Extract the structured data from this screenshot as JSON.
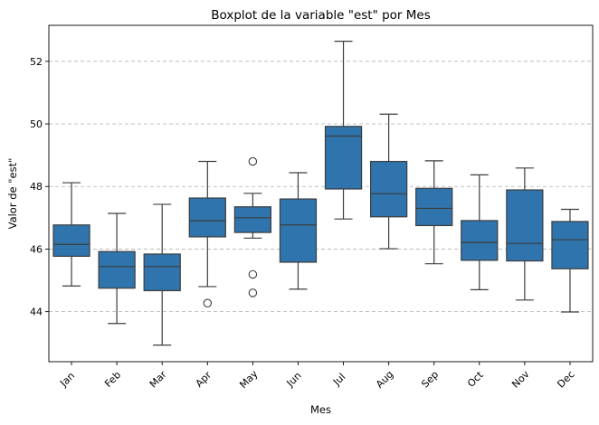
{
  "chart_data": {
    "type": "boxplot",
    "title": "Boxplot de la variable \"est\" por Mes",
    "xlabel": "Mes",
    "ylabel": "Valor de \"est\"",
    "ylim": [
      42.4,
      53.15
    ],
    "yticks": [
      44,
      46,
      48,
      50,
      52
    ],
    "grid": "horizontal-dashed",
    "box_color": "#2f74ac",
    "line_color": "#3d3d3d",
    "grid_color": "#b0b0b0",
    "categories": [
      "Jan",
      "Feb",
      "Mar",
      "Apr",
      "May",
      "Jun",
      "Jul",
      "Aug",
      "Sep",
      "Oct",
      "Nov",
      "Dec"
    ],
    "boxes": [
      {
        "category": "Jan",
        "whislo": 44.82,
        "q1": 45.77,
        "med": 46.15,
        "q3": 46.77,
        "whishi": 48.12,
        "fliers": []
      },
      {
        "category": "Feb",
        "whislo": 43.62,
        "q1": 44.75,
        "med": 45.44,
        "q3": 45.92,
        "whishi": 47.14,
        "fliers": []
      },
      {
        "category": "Mar",
        "whislo": 42.93,
        "q1": 44.67,
        "med": 45.44,
        "q3": 45.84,
        "whishi": 47.43,
        "fliers": []
      },
      {
        "category": "Apr",
        "whislo": 44.8,
        "q1": 46.39,
        "med": 46.9,
        "q3": 47.63,
        "whishi": 48.8,
        "fliers": [
          44.27
        ]
      },
      {
        "category": "May",
        "whislo": 46.35,
        "q1": 46.53,
        "med": 47.0,
        "q3": 47.35,
        "whishi": 47.78,
        "fliers": [
          48.8,
          45.19,
          44.6
        ]
      },
      {
        "category": "Jun",
        "whislo": 44.72,
        "q1": 45.58,
        "med": 46.77,
        "q3": 47.6,
        "whishi": 48.44,
        "fliers": []
      },
      {
        "category": "Jul",
        "whislo": 46.96,
        "q1": 47.92,
        "med": 49.61,
        "q3": 49.92,
        "whishi": 52.64,
        "fliers": []
      },
      {
        "category": "Aug",
        "whislo": 46.01,
        "q1": 47.03,
        "med": 47.77,
        "q3": 48.8,
        "whishi": 50.31,
        "fliers": []
      },
      {
        "category": "Sep",
        "whislo": 45.53,
        "q1": 46.75,
        "med": 47.3,
        "q3": 47.94,
        "whishi": 48.82,
        "fliers": []
      },
      {
        "category": "Oct",
        "whislo": 44.7,
        "q1": 45.64,
        "med": 46.21,
        "q3": 46.91,
        "whishi": 48.37,
        "fliers": []
      },
      {
        "category": "Nov",
        "whislo": 44.37,
        "q1": 45.62,
        "med": 46.18,
        "q3": 47.89,
        "whishi": 48.59,
        "fliers": []
      },
      {
        "category": "Dec",
        "whislo": 43.99,
        "q1": 45.37,
        "med": 46.3,
        "q3": 46.88,
        "whishi": 47.27,
        "fliers": []
      }
    ]
  }
}
